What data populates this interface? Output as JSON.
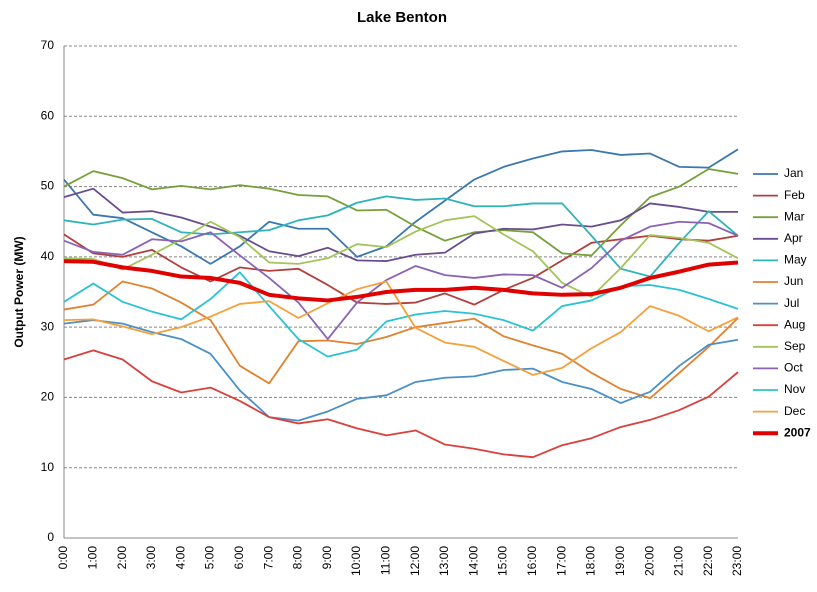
{
  "chart_data": {
    "type": "line",
    "title": "Lake Benton",
    "y_label": "Output Power (MW)",
    "categories": [
      "0:00",
      "1:00",
      "2:00",
      "3:00",
      "4:00",
      "5:00",
      "6:00",
      "7:00",
      "8:00",
      "9:00",
      "10:00",
      "11:00",
      "12:00",
      "13:00",
      "14:00",
      "15:00",
      "16:00",
      "17:00",
      "18:00",
      "19:00",
      "20:00",
      "21:00",
      "22:00",
      "23:00"
    ],
    "ylim": [
      0,
      70
    ],
    "yticks": [
      0,
      10,
      20,
      30,
      40,
      50,
      60,
      70
    ],
    "grid": true,
    "legend": "right",
    "series": [
      {
        "name": "Jan",
        "color": "#3c78b0",
        "values": [
          51,
          46,
          45.5,
          43.5,
          41.5,
          39,
          41.5,
          45,
          44,
          44,
          40,
          41.5,
          45,
          48,
          51,
          52.8,
          54,
          55,
          55.2,
          54.5,
          54.7,
          52.8,
          52.7,
          55.3
        ]
      },
      {
        "name": "Feb",
        "color": "#b2403d",
        "values": [
          43.2,
          40.5,
          40,
          41,
          38.5,
          36.5,
          38.5,
          38,
          38.3,
          36,
          33.5,
          33.3,
          33.5,
          34.8,
          33.2,
          35.3,
          37,
          39.5,
          42,
          42.5,
          43,
          42.5,
          42.3,
          43
        ]
      },
      {
        "name": "Mar",
        "color": "#76a03a",
        "values": [
          50,
          52.2,
          51.2,
          49.6,
          50.1,
          49.6,
          50.2,
          49.7,
          48.8,
          48.6,
          46.6,
          46.7,
          44.3,
          42.3,
          43.5,
          43.8,
          43.5,
          40.5,
          40.2,
          44.5,
          48.5,
          50,
          52.5,
          51.8
        ]
      },
      {
        "name": "Apr",
        "color": "#6a4d8f",
        "values": [
          48.5,
          49.7,
          46.3,
          46.5,
          45.6,
          44.3,
          43,
          40.8,
          40.1,
          41.3,
          39.5,
          39.4,
          40.3,
          40.6,
          43.3,
          44,
          43.9,
          44.6,
          44.3,
          45.2,
          47.6,
          47.1,
          46.4,
          46.4
        ]
      },
      {
        "name": "May",
        "color": "#2fb3bb",
        "values": [
          45.2,
          44.6,
          45.3,
          45.4,
          43.5,
          43.2,
          43.5,
          43.8,
          45.2,
          45.9,
          47.7,
          48.6,
          48.1,
          48.3,
          47.2,
          47.2,
          47.6,
          47.6,
          43,
          38.3,
          37.2,
          42,
          46.5,
          43
        ]
      },
      {
        "name": "Jun",
        "color": "#e0822e",
        "values": [
          32.5,
          33.2,
          36.5,
          35.5,
          33.5,
          31,
          24.5,
          22,
          28,
          28.1,
          27.6,
          28.6,
          30,
          30.6,
          31.2,
          28.7,
          27.4,
          26.2,
          23.5,
          21.2,
          19.9,
          23.5,
          27.2,
          31.3
        ]
      },
      {
        "name": "Jul",
        "color": "#4a90c8",
        "values": [
          30.5,
          31,
          30.5,
          29.3,
          28.3,
          26.2,
          21,
          17.2,
          16.7,
          18,
          19.8,
          20.3,
          22.2,
          22.8,
          23,
          23.9,
          24.1,
          22.2,
          21.2,
          19.2,
          20.8,
          24.5,
          27.5,
          28.2
        ]
      },
      {
        "name": "Aug",
        "color": "#d9403c",
        "values": [
          25.4,
          26.7,
          25.4,
          22.3,
          20.7,
          21.4,
          19.5,
          17.2,
          16.3,
          16.9,
          15.6,
          14.6,
          15.3,
          13.3,
          12.7,
          11.9,
          11.5,
          13.2,
          14.2,
          15.8,
          16.8,
          18.2,
          20.1,
          23.6
        ]
      },
      {
        "name": "Sep",
        "color": "#a3c45a",
        "values": [
          39.8,
          39.7,
          38.2,
          40.3,
          42.5,
          45,
          42.8,
          39.2,
          39,
          39.8,
          41.8,
          41.4,
          43.6,
          45.2,
          45.8,
          43.2,
          40.8,
          36.3,
          34.3,
          38.4,
          43.1,
          42.7,
          42,
          39.8
        ]
      },
      {
        "name": "Oct",
        "color": "#8a63b5",
        "values": [
          42.3,
          40.7,
          40.3,
          42.5,
          42.2,
          43.5,
          40.2,
          37,
          33.5,
          28.3,
          33.5,
          36.7,
          38.7,
          37.4,
          37,
          37.5,
          37.4,
          35.6,
          38.4,
          42.3,
          44.3,
          45,
          44.8,
          43
        ]
      },
      {
        "name": "Nov",
        "color": "#2bc3d3",
        "values": [
          33.6,
          36.2,
          33.6,
          32.2,
          31.1,
          34,
          37.8,
          33,
          28.3,
          25.8,
          26.8,
          30.8,
          31.8,
          32.3,
          31.9,
          31,
          29.5,
          33,
          33.8,
          35.8,
          36,
          35.3,
          34,
          32.6
        ]
      },
      {
        "name": "Dec",
        "color": "#f5a03a",
        "values": [
          31,
          31.1,
          30.1,
          29,
          30,
          31.5,
          33.3,
          33.7,
          31.3,
          33.4,
          35.4,
          36.5,
          29.9,
          27.8,
          27.2,
          25.2,
          23.2,
          24.2,
          27,
          29.3,
          33,
          31.6,
          29.4,
          31.4
        ]
      },
      {
        "name": "2007",
        "color": "#e00000",
        "line_width": 4,
        "values": [
          39.4,
          39.3,
          38.5,
          38,
          37.2,
          37,
          36.3,
          34.6,
          34.1,
          33.8,
          34.3,
          35,
          35.3,
          35.3,
          35.6,
          35.3,
          34.8,
          34.6,
          34.7,
          35.6,
          37,
          37.9,
          38.9,
          39.2
        ]
      }
    ]
  }
}
